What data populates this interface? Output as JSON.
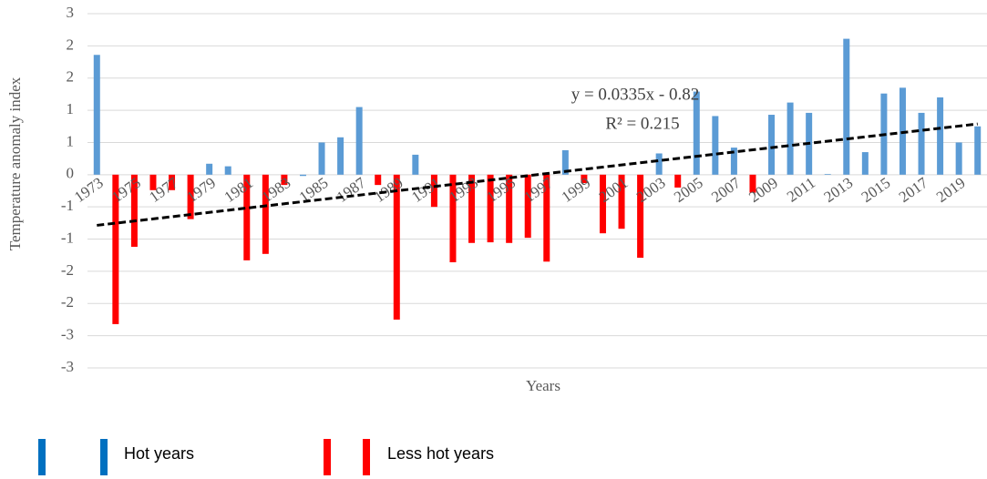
{
  "chart_data": {
    "type": "bar",
    "x_label": "Years",
    "y_label": "Temperature anomaly index",
    "categories": [
      "1973",
      null,
      "1975",
      null,
      "1977",
      null,
      "1979",
      null,
      "1981",
      null,
      "1983",
      null,
      "1985",
      null,
      "1987",
      null,
      "1989",
      null,
      "1991",
      null,
      "1993",
      null,
      "1995",
      null,
      "1997",
      null,
      "1999",
      null,
      "2001",
      null,
      "2003",
      null,
      "2005",
      null,
      "2007",
      null,
      "2009",
      null,
      "2011",
      null,
      "2013",
      null,
      "2015",
      null,
      "2017",
      null,
      "2019",
      null
    ],
    "series": [
      {
        "name": "Hot years",
        "color": "#5b9bd5",
        "values": [
          1.86,
          null,
          null,
          null,
          null,
          null,
          0.17,
          0.13,
          null,
          null,
          null,
          -0.02,
          0.5,
          0.58,
          1.05,
          null,
          null,
          0.31,
          null,
          null,
          null,
          null,
          null,
          null,
          null,
          0.38,
          null,
          null,
          null,
          null,
          0.33,
          null,
          1.29,
          0.91,
          0.42,
          null,
          0.93,
          1.12,
          0.96,
          0.01,
          2.11,
          0.35,
          1.26,
          1.35,
          0.96,
          1.2,
          0.5,
          0.75
        ]
      },
      {
        "name": "Less hot years",
        "color": "#ff0000",
        "values": [
          null,
          -2.32,
          -1.12,
          -0.24,
          -0.24,
          -0.69,
          null,
          null,
          -1.33,
          -1.23,
          -0.16,
          null,
          null,
          null,
          null,
          -0.16,
          -2.25,
          null,
          -0.5,
          -1.36,
          -1.06,
          -1.05,
          -1.06,
          -0.98,
          -1.35,
          null,
          -0.13,
          -0.91,
          -0.84,
          -1.29,
          null,
          -0.2,
          null,
          null,
          null,
          -0.28,
          null,
          null,
          null,
          null,
          null,
          null,
          null,
          null,
          null,
          null,
          null,
          null
        ]
      }
    ],
    "trendline": {
      "slope": 0.0335,
      "intercept": -0.82,
      "color": "#000000"
    },
    "annotations": [
      "y = 0.0335x - 0.82",
      "R² = 0.215"
    ],
    "ylim": [
      -3,
      2.5
    ],
    "yticks": [
      {
        "value": 2.5,
        "label": "3"
      },
      2,
      {
        "value": 1.5,
        "label": "2"
      },
      1,
      {
        "value": 0.5,
        "label": "1"
      },
      0,
      {
        "value": -0.5,
        "label": "-1"
      },
      -1,
      {
        "value": -1.5,
        "label": "-2"
      },
      -2,
      {
        "value": -2.5,
        "label": "-3"
      },
      -3
    ],
    "grid": true
  }
}
